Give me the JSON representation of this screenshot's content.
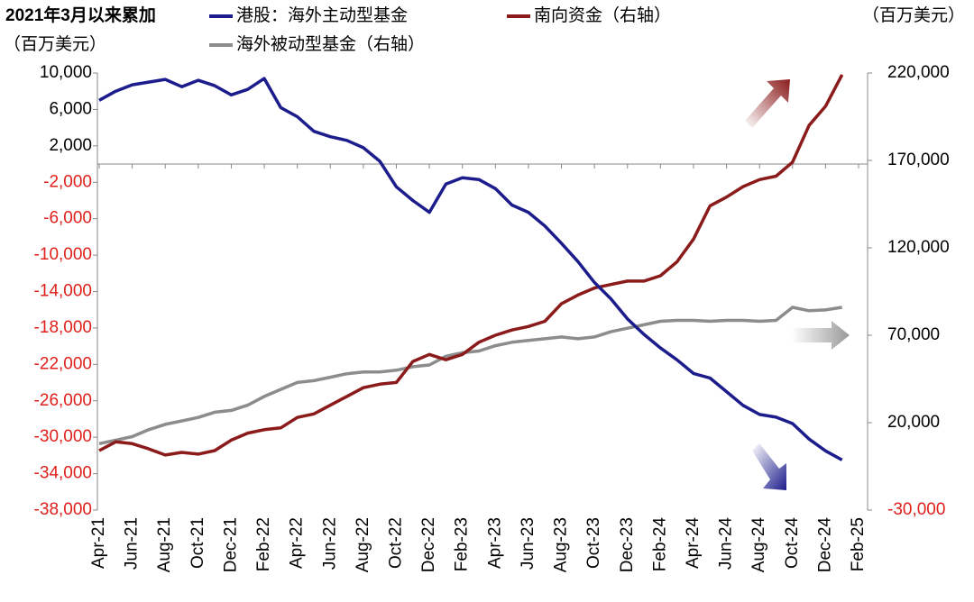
{
  "chart_data": {
    "type": "line",
    "title": "2021年3月以来累加",
    "y_label": "（百万美元）",
    "y2_label": "（百万美元）",
    "categories": [
      "Apr-21",
      null,
      "Jun-21",
      null,
      "Aug-21",
      null,
      "Oct-21",
      null,
      "Dec-21",
      null,
      "Feb-22",
      null,
      "Apr-22",
      null,
      "Jun-22",
      null,
      "Aug-22",
      null,
      "Oct-22",
      null,
      "Dec-22",
      null,
      "Feb-23",
      null,
      "Apr-23",
      null,
      "Jun-23",
      null,
      "Aug-23",
      null,
      "Oct-23",
      null,
      "Dec-23",
      null,
      "Feb-24",
      null,
      "Apr-24",
      null,
      "Jun-24",
      null,
      "Aug-24",
      null,
      "Oct-24",
      null,
      "Dec-24",
      null,
      "Feb-25"
    ],
    "series": [
      {
        "name": "港股：海外主动型基金",
        "color": "#1c1c8c",
        "axis": "y",
        "values": [
          7000,
          8000,
          8700,
          9000,
          9300,
          8500,
          9200,
          8600,
          7600,
          8200,
          9400,
          6200,
          5200,
          3600,
          3000,
          2600,
          1800,
          300,
          -2500,
          -4000,
          -5300,
          -2200,
          -1500,
          -1700,
          -2700,
          -4500,
          -5300,
          -6800,
          -8700,
          -10700,
          -13000,
          -14800,
          -17000,
          -18700,
          -20200,
          -21500,
          -23000,
          -23500,
          -25000,
          -26500,
          -27500,
          -27800,
          -28500,
          -30200,
          -31500,
          -32500,
          null
        ]
      },
      {
        "name": "南向资金（右轴）",
        "color": "#8b1a1a",
        "axis": "y2",
        "values": [
          4000,
          9000,
          8000,
          5000,
          1500,
          3000,
          2000,
          4000,
          10000,
          14000,
          16000,
          17000,
          23000,
          25000,
          30000,
          35000,
          40000,
          42000,
          43000,
          55000,
          59000,
          56000,
          59000,
          66000,
          70000,
          73000,
          75000,
          78000,
          88000,
          93000,
          97000,
          99000,
          101000,
          101000,
          104000,
          112000,
          125000,
          144000,
          149000,
          155000,
          159000,
          161000,
          169000,
          190000,
          201000,
          219000,
          null
        ]
      },
      {
        "name": "海外被动型基金（右轴）",
        "color": "#8c8c8c",
        "axis": "y2",
        "values": [
          8000,
          10000,
          12000,
          16000,
          19000,
          21000,
          23000,
          26000,
          27000,
          30000,
          35000,
          39000,
          43000,
          44000,
          46000,
          48000,
          49000,
          49000,
          50000,
          52000,
          53000,
          58000,
          60000,
          61000,
          64000,
          66000,
          67000,
          68000,
          69000,
          68000,
          69000,
          72000,
          74000,
          76000,
          78000,
          78500,
          78500,
          78000,
          78500,
          78500,
          78000,
          78500,
          86000,
          84000,
          84500,
          86000,
          null
        ]
      }
    ],
    "ylim": [
      -38000,
      10000
    ],
    "yticks": [
      {
        "value": 10000,
        "label": "10,000"
      },
      {
        "value": 6000,
        "label": "6,000"
      },
      {
        "value": 2000,
        "label": "2,000"
      },
      {
        "value": -2000,
        "label": "-2,000"
      },
      {
        "value": -6000,
        "label": "-6,000"
      },
      {
        "value": -10000,
        "label": "-10,000"
      },
      {
        "value": -14000,
        "label": "-14,000"
      },
      {
        "value": -18000,
        "label": "-18,000"
      },
      {
        "value": -22000,
        "label": "-22,000"
      },
      {
        "value": -26000,
        "label": "-26,000"
      },
      {
        "value": -30000,
        "label": "-30,000"
      },
      {
        "value": -34000,
        "label": "-34,000"
      },
      {
        "value": -38000,
        "label": "-38,000"
      }
    ],
    "y2lim": [
      -30000,
      220000
    ],
    "y2ticks": [
      {
        "value": 220000,
        "label": "220,000"
      },
      {
        "value": 170000,
        "label": "170,000"
      },
      {
        "value": 120000,
        "label": "120,000"
      },
      {
        "value": 70000,
        "label": "70,000"
      },
      {
        "value": 20000,
        "label": "20,000"
      },
      {
        "value": -30000,
        "label": "-30,000"
      }
    ],
    "negative_color": "#e0201b"
  }
}
